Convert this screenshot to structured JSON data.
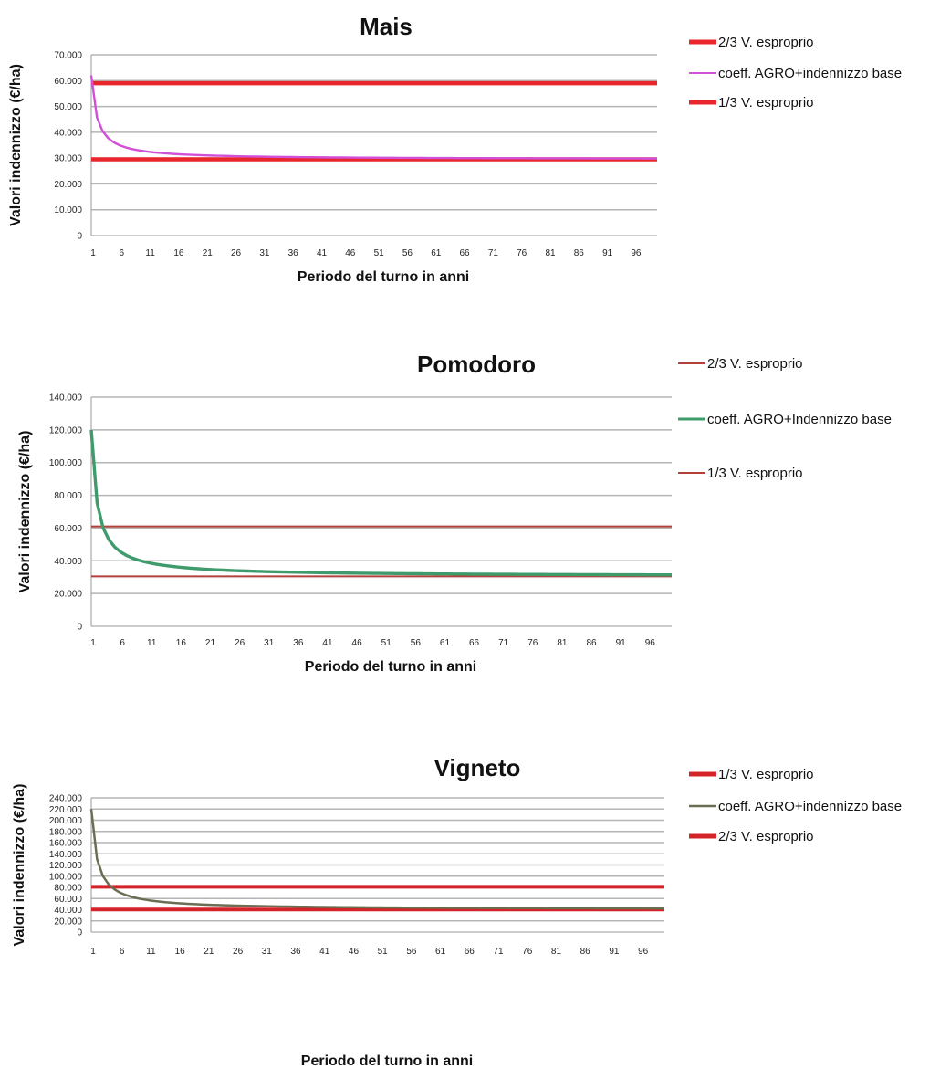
{
  "chart_data": [
    {
      "type": "line",
      "title": "Mais",
      "xlabel": "Periodo del turno in anni",
      "ylabel": "Valori indennizzo (€/ha)",
      "ylim": [
        0,
        70000
      ],
      "yticks": [
        "0",
        "10.000",
        "20.000",
        "30.000",
        "40.000",
        "50.000",
        "60.000",
        "70.000"
      ],
      "xlim": [
        1,
        100
      ],
      "xticks": [
        "1",
        "6",
        "11",
        "16",
        "21",
        "26",
        "31",
        "36",
        "41",
        "46",
        "51",
        "56",
        "61",
        "66",
        "71",
        "76",
        "81",
        "86",
        "91",
        "96"
      ],
      "grid": true,
      "legend_position": "right",
      "series": [
        {
          "name": "2/3 V. esproprio",
          "kind": "constant",
          "value": 59000,
          "color": "#e8262b"
        },
        {
          "name": "coeff. AGRO+indennizzo base",
          "kind": "curve",
          "base": 29500,
          "extra": 32500,
          "color": "#d24fd8"
        },
        {
          "name": "1/3 V. esproprio",
          "kind": "constant",
          "value": 29500,
          "color": "#e8262b"
        }
      ]
    },
    {
      "type": "line",
      "title": "Pomodoro",
      "xlabel": "Periodo del turno in anni",
      "ylabel": "Valori indennizzo (€/ha)",
      "ylim": [
        0,
        140000
      ],
      "yticks": [
        "0",
        "20.000",
        "40.000",
        "60.000",
        "80.000",
        "100.000",
        "120.000",
        "140.000"
      ],
      "xlim": [
        1,
        100
      ],
      "xticks": [
        "1",
        "6",
        "11",
        "16",
        "21",
        "26",
        "31",
        "36",
        "41",
        "46",
        "51",
        "56",
        "61",
        "66",
        "71",
        "76",
        "81",
        "86",
        "91",
        "96"
      ],
      "grid": true,
      "legend_position": "right",
      "series": [
        {
          "name": "2/3 V. esproprio",
          "kind": "constant",
          "value": 61000,
          "color": "#b3403b"
        },
        {
          "name": "coeff. AGRO+Indennizzo base",
          "kind": "curve",
          "base": 30500,
          "extra": 89500,
          "color": "#3f9b6c"
        },
        {
          "name": "1/3 V. esproprio",
          "kind": "constant",
          "value": 30500,
          "color": "#b3403b"
        }
      ]
    },
    {
      "type": "line",
      "title": "Vigneto",
      "xlabel": "Periodo del turno in anni",
      "ylabel": "Valori indennizzo (€/ha)",
      "ylim": [
        0,
        240000
      ],
      "yticks": [
        "0",
        "20.000",
        "40.000",
        "60.000",
        "80.000",
        "100.000",
        "120.000",
        "140.000",
        "160.000",
        "180.000",
        "200.000",
        "220.000",
        "240.000"
      ],
      "xlim": [
        1,
        100
      ],
      "xticks": [
        "1",
        "6",
        "11",
        "16",
        "21",
        "26",
        "31",
        "36",
        "41",
        "46",
        "51",
        "56",
        "61",
        "66",
        "71",
        "76",
        "81",
        "86",
        "91",
        "96"
      ],
      "grid": true,
      "legend_position": "right",
      "series": [
        {
          "name": "1/3 V. esproprio",
          "kind": "constant",
          "value": 40500,
          "color": "#d5232a"
        },
        {
          "name": "coeff. AGRO+indennizzo base",
          "kind": "curve",
          "base": 40500,
          "extra": 179500,
          "color": "#6a6e52"
        },
        {
          "name": "2/3 V. esproprio",
          "kind": "constant",
          "value": 81000,
          "color": "#d5232a"
        }
      ]
    }
  ]
}
